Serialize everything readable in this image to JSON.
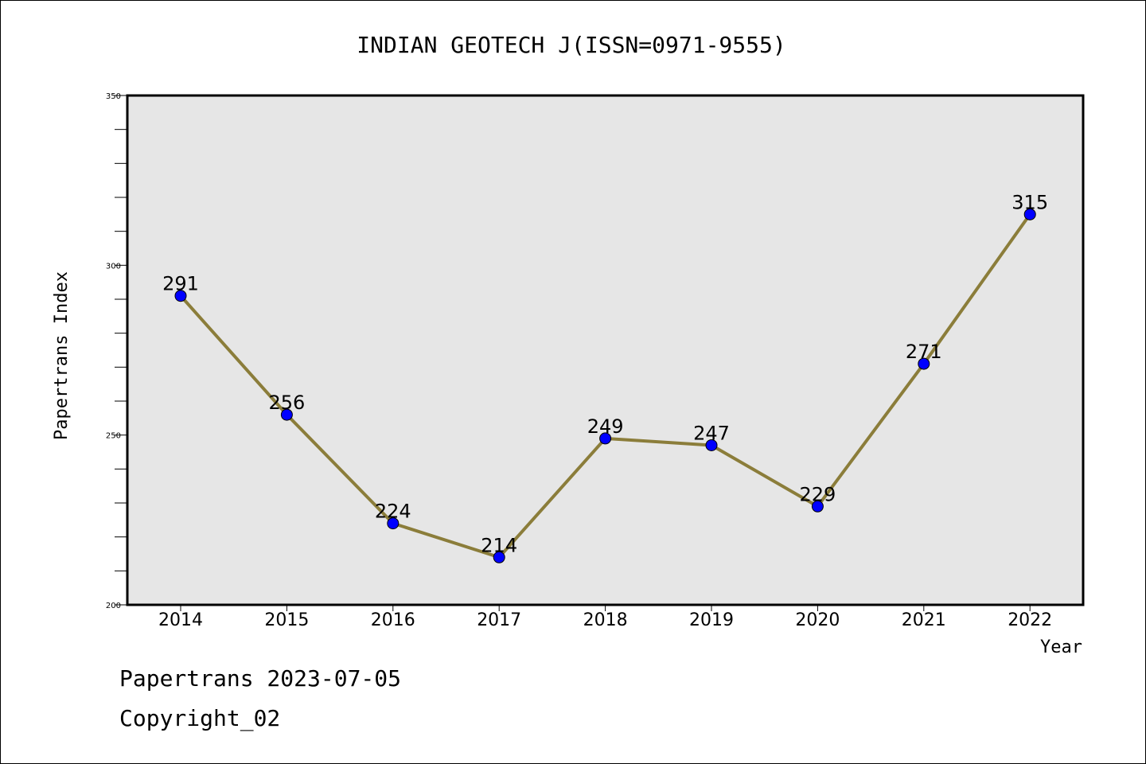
{
  "chart_data": {
    "type": "line",
    "title": "INDIAN GEOTECH J(ISSN=0971-9555)",
    "xlabel": "Year",
    "ylabel": "Papertrans Index",
    "categories": [
      "2014",
      "2015",
      "2016",
      "2017",
      "2018",
      "2019",
      "2020",
      "2021",
      "2022"
    ],
    "values": [
      291,
      256,
      224,
      214,
      249,
      247,
      229,
      271,
      315
    ],
    "data_labels": [
      "291",
      "256",
      "224",
      "214",
      "249",
      "247",
      "229",
      "271",
      "315"
    ],
    "ylim": [
      200,
      350
    ],
    "yticks": [
      200,
      250,
      300,
      350
    ],
    "ytick_labels": [
      "200",
      "250",
      "300",
      "350"
    ],
    "grid": false,
    "colors": {
      "line": "#8b7d3a",
      "marker": "#0000ff",
      "plot_background": "#e6e6e6"
    }
  },
  "footer": {
    "line1": "Papertrans 2023-07-05",
    "line2": "Copyright_02"
  }
}
